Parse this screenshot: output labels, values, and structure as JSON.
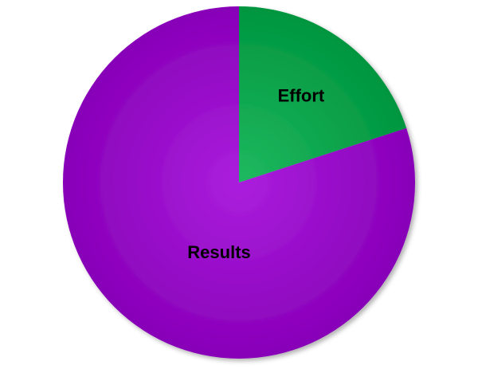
{
  "chart_data": {
    "type": "pie",
    "categories": [
      "Effort",
      "Results"
    ],
    "values": [
      20,
      80
    ],
    "colors": [
      "#00b04a",
      "#a000d8"
    ],
    "start_angle": 0,
    "direction": "clockwise"
  }
}
